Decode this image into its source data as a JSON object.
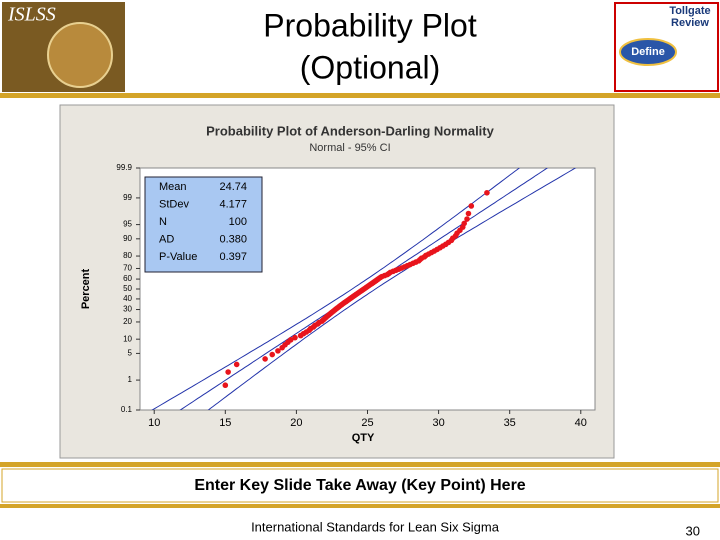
{
  "header": {
    "logo_text": "ISLSS",
    "title_lines": [
      "Probability Plot",
      "(Optional)"
    ],
    "tollgate": [
      "Tollgate",
      "Review"
    ],
    "phase": "Define"
  },
  "chart_data": {
    "type": "probability",
    "title": "Probability Plot of Anderson-Darling Normality",
    "subtitle": "Normal - 95% CI",
    "x_label": "QTY",
    "y_label": "Percent",
    "xlim": [
      9,
      41
    ],
    "xticks": [
      10,
      15,
      20,
      25,
      30,
      35,
      40
    ],
    "ylim": [
      0.1,
      99.9
    ],
    "yticks": [
      0.1,
      1,
      5,
      10,
      20,
      30,
      40,
      50,
      60,
      70,
      80,
      90,
      95,
      99,
      99.9
    ],
    "series": [
      {
        "name": "QTY",
        "color": "#e8141c",
        "x": [
          15.0,
          15.2,
          15.8,
          17.8,
          18.3,
          18.7,
          19.0,
          19.2,
          19.4,
          19.6,
          19.9,
          20.3,
          20.5,
          20.7,
          20.9,
          21.0,
          21.2,
          21.3,
          21.5,
          21.6,
          21.8,
          21.9,
          22.0,
          22.1,
          22.2,
          22.3,
          22.4,
          22.5,
          22.6,
          22.7,
          22.8,
          22.9,
          23.0,
          23.1,
          23.2,
          23.3,
          23.4,
          23.5,
          23.6,
          23.7,
          23.8,
          23.9,
          24.0,
          24.1,
          24.2,
          24.3,
          24.4,
          24.5,
          24.6,
          24.7,
          24.8,
          24.9,
          25.0,
          25.1,
          25.2,
          25.3,
          25.4,
          25.5,
          25.6,
          25.7,
          25.8,
          25.9,
          26.0,
          26.2,
          26.4,
          26.5,
          26.6,
          26.8,
          27.0,
          27.2,
          27.4,
          27.6,
          27.8,
          28.0,
          28.2,
          28.4,
          28.6,
          28.7,
          28.8,
          29.0,
          29.1,
          29.3,
          29.5,
          29.7,
          29.9,
          30.1,
          30.3,
          30.5,
          30.7,
          30.9,
          31.0,
          31.2,
          31.3,
          31.5,
          31.7,
          31.8,
          32.0,
          32.1,
          32.3,
          33.4
        ],
        "values": [
          0.7,
          1.7,
          2.7,
          3.7,
          4.7,
          5.7,
          6.7,
          7.7,
          8.7,
          9.7,
          10.7,
          11.7,
          12.7,
          13.6,
          14.6,
          15.6,
          16.6,
          17.6,
          18.6,
          19.6,
          20.6,
          21.6,
          22.6,
          23.6,
          24.6,
          25.6,
          26.6,
          27.6,
          28.6,
          29.6,
          30.6,
          31.6,
          32.6,
          33.6,
          34.6,
          35.6,
          36.6,
          37.5,
          38.5,
          39.5,
          40.5,
          41.5,
          42.5,
          43.5,
          44.5,
          45.5,
          46.5,
          47.5,
          48.5,
          49.5,
          50.5,
          51.5,
          52.5,
          53.5,
          54.5,
          55.5,
          56.5,
          57.5,
          58.5,
          59.5,
          60.5,
          61.5,
          62.4,
          63.4,
          64.4,
          65.4,
          66.4,
          67.4,
          68.4,
          69.4,
          70.4,
          71.4,
          72.4,
          73.4,
          74.4,
          75.4,
          76.4,
          77.4,
          78.4,
          79.4,
          80.4,
          81.4,
          82.4,
          83.4,
          84.4,
          85.4,
          86.4,
          87.3,
          88.3,
          89.3,
          90.3,
          91.3,
          92.3,
          93.3,
          94.3,
          95.3,
          96.3,
          97.3,
          98.3,
          99.3
        ]
      }
    ],
    "line_color": "#2233aa",
    "stats_color": "#a9c8f2",
    "stats": [
      {
        "label": "Mean",
        "value": 24.74
      },
      {
        "label": "StDev",
        "value": 4.177
      },
      {
        "label": "N",
        "value": 100
      },
      {
        "label": "AD",
        "value": "0.380"
      },
      {
        "label": "P-Value",
        "value": "0.397"
      }
    ]
  },
  "takeaway": "Enter Key Slide Take Away (Key Point) Here",
  "footer": {
    "center": "International Standards for Lean Six Sigma",
    "page": 30
  }
}
